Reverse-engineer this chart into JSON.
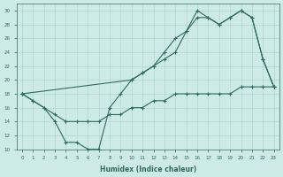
{
  "xlabel": "Humidex (Indice chaleur)",
  "background_color": "#ceeae7",
  "line_color": "#2d6b5e",
  "xlim": [
    -0.5,
    23.5
  ],
  "ylim": [
    10,
    31
  ],
  "xticks": [
    0,
    1,
    2,
    3,
    4,
    5,
    6,
    7,
    8,
    9,
    10,
    11,
    12,
    13,
    14,
    15,
    16,
    17,
    18,
    19,
    20,
    21,
    22,
    23
  ],
  "yticks": [
    10,
    12,
    14,
    16,
    18,
    20,
    22,
    24,
    26,
    28,
    30
  ],
  "grid_color": "#b0d8d4",
  "line1_x": [
    0,
    1,
    2,
    3,
    4,
    5,
    6,
    7,
    8,
    9,
    10,
    11,
    12,
    13,
    14,
    15,
    16,
    17,
    18,
    19,
    20,
    21,
    22,
    23
  ],
  "line1_y": [
    18,
    17,
    16,
    14,
    11,
    11,
    10,
    10,
    16,
    18,
    20,
    21,
    22,
    24,
    26,
    27,
    30,
    29,
    28,
    29,
    30,
    29,
    23,
    19
  ],
  "line2_x": [
    0,
    10,
    11,
    12,
    13,
    14,
    15,
    16,
    17,
    18,
    19,
    20,
    21,
    22,
    23
  ],
  "line2_y": [
    18,
    20,
    21,
    22,
    23,
    24,
    27,
    29,
    29,
    28,
    29,
    30,
    29,
    23,
    19
  ],
  "line3_x": [
    0,
    1,
    2,
    3,
    4,
    5,
    6,
    7,
    8,
    9,
    10,
    11,
    12,
    13,
    14,
    15,
    16,
    17,
    18,
    19,
    20,
    21,
    22,
    23
  ],
  "line3_y": [
    18,
    17,
    16,
    15,
    14,
    14,
    14,
    14,
    15,
    15,
    16,
    16,
    17,
    17,
    18,
    18,
    18,
    18,
    18,
    18,
    19,
    19,
    19,
    19
  ],
  "figsize": [
    3.2,
    2.0
  ],
  "dpi": 100
}
